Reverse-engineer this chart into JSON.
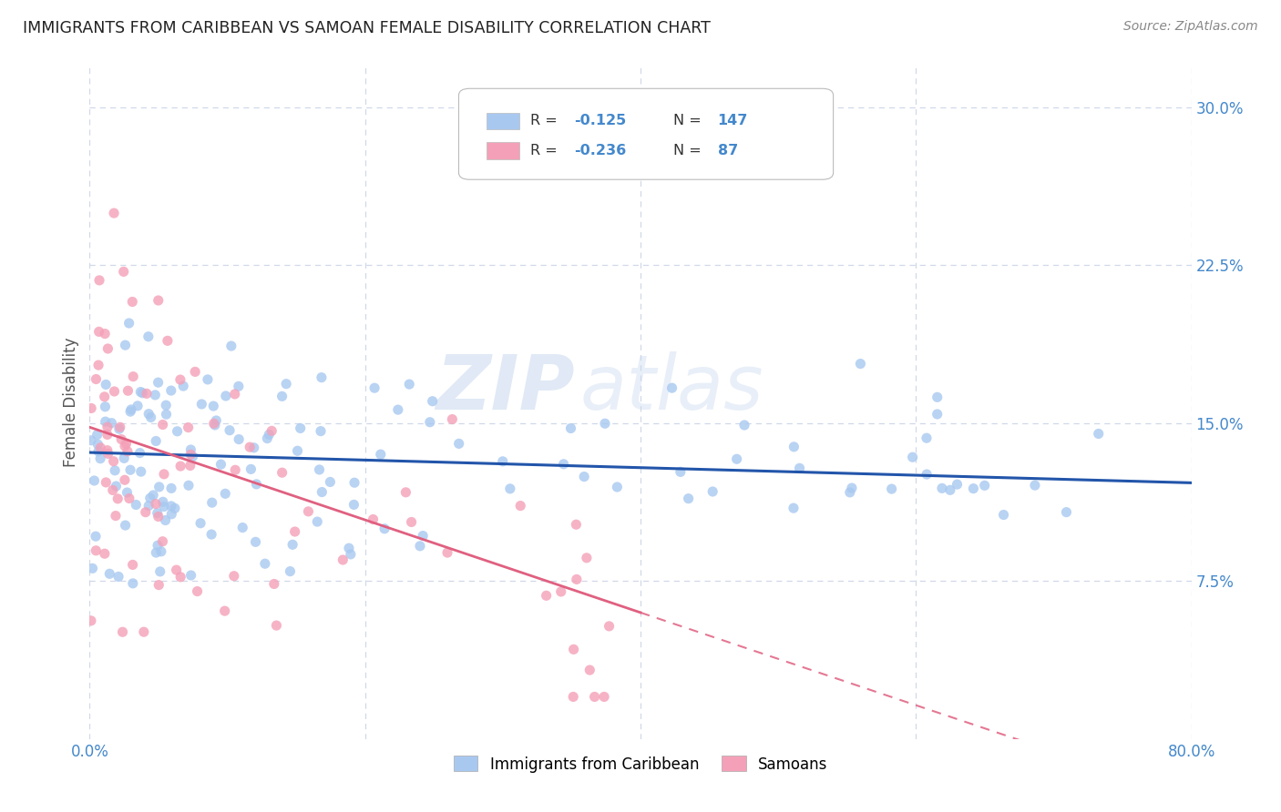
{
  "title": "IMMIGRANTS FROM CARIBBEAN VS SAMOAN FEMALE DISABILITY CORRELATION CHART",
  "source": "Source: ZipAtlas.com",
  "ylabel": "Female Disability",
  "y_ticks": [
    0.075,
    0.15,
    0.225,
    0.3
  ],
  "y_tick_labels": [
    "7.5%",
    "15.0%",
    "22.5%",
    "30.0%"
  ],
  "xlim": [
    0.0,
    0.8
  ],
  "ylim": [
    0.0,
    0.32
  ],
  "caribbean_R": -0.125,
  "caribbean_N": 147,
  "samoan_R": -0.236,
  "samoan_N": 87,
  "caribbean_color": "#a8c8f0",
  "samoan_color": "#f4a0b8",
  "caribbean_line_color": "#2255aa",
  "samoan_line_color": "#e06080",
  "legend_label_caribbean": "Immigrants from Caribbean",
  "legend_label_samoan": "Samoans",
  "watermark_zip": "ZIP",
  "watermark_atlas": "atlas",
  "background_color": "#ffffff",
  "grid_color": "#d0d8e8",
  "title_color": "#222222",
  "tick_color": "#4488cc",
  "caribbean_line_intercept": 0.136,
  "caribbean_line_slope": -0.018,
  "samoan_line_intercept": 0.148,
  "samoan_line_slope": -0.22
}
